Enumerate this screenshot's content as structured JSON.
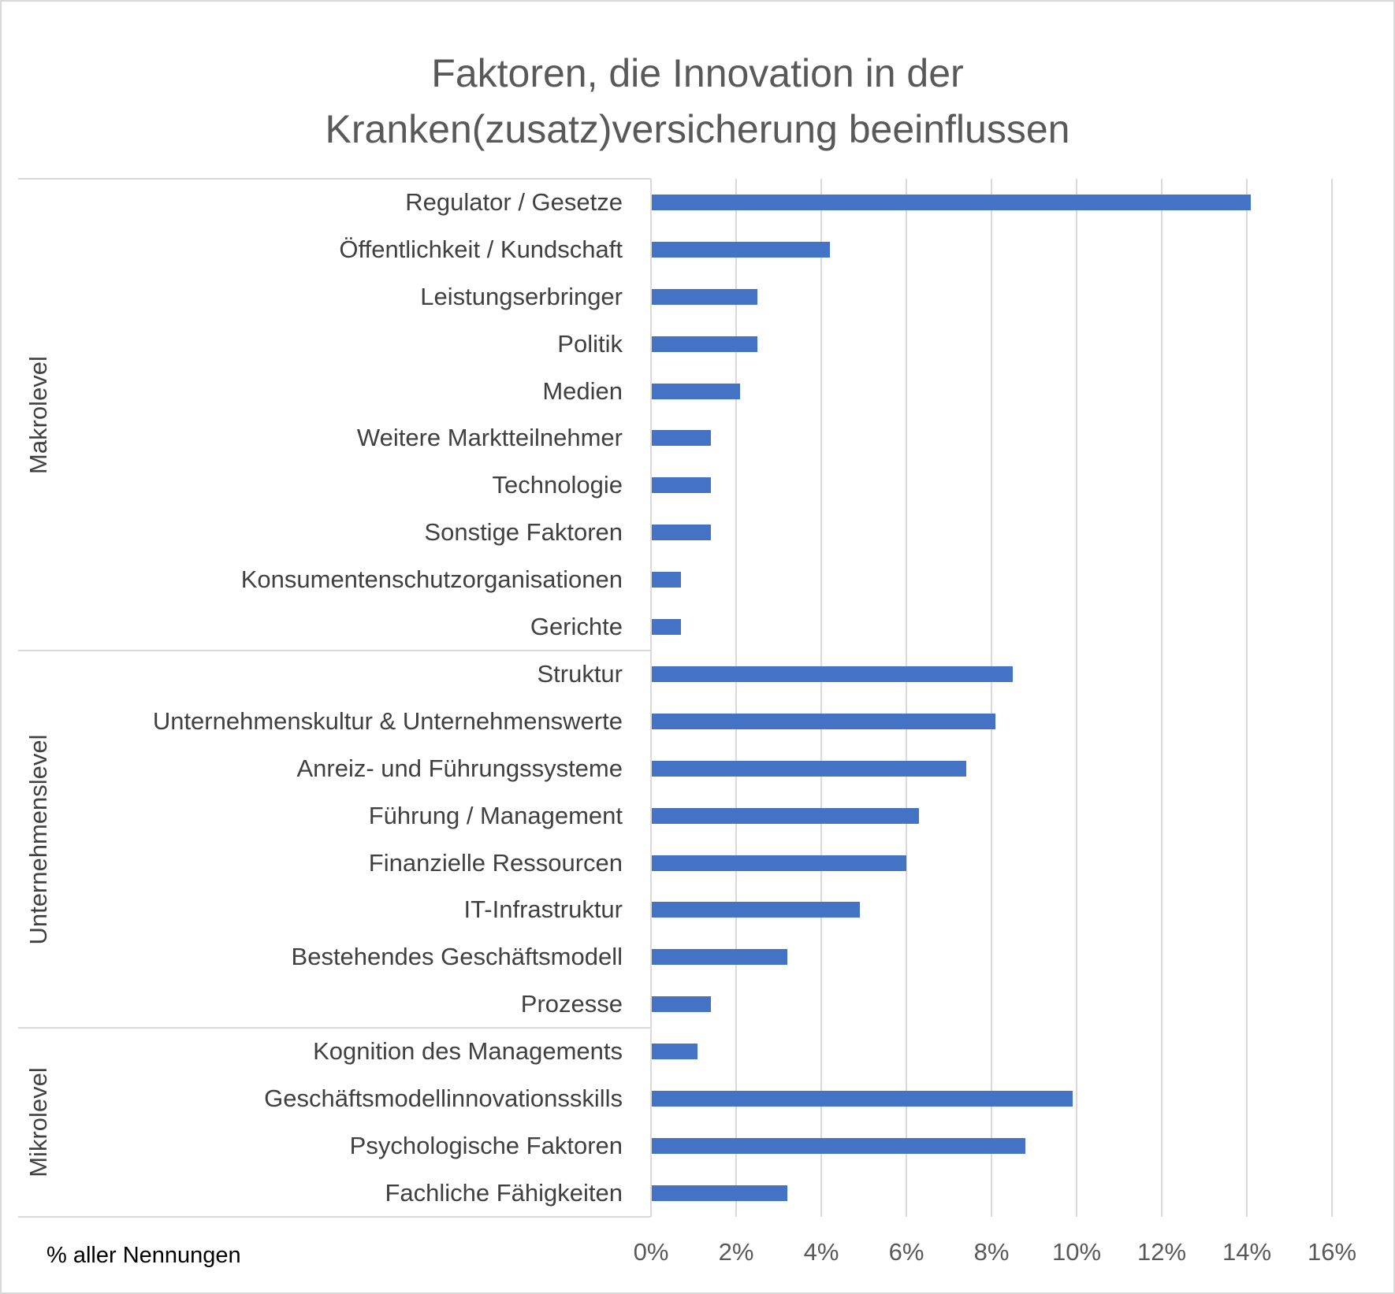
{
  "chart_data": {
    "type": "bar",
    "orientation": "horizontal",
    "title": "Faktoren, die Innovation in der Kranken(zusatz)versicherung beeinflussen",
    "title_lines": [
      "Faktoren, die Innovation in der",
      "Kranken(zusatz)versicherung beeinflussen"
    ],
    "xlabel": "% aller Nennungen",
    "ylabel": "",
    "xlim": [
      0,
      16
    ],
    "x_ticks": [
      "0%",
      "2%",
      "4%",
      "6%",
      "8%",
      "10%",
      "12%",
      "14%",
      "16%"
    ],
    "grid": "vertical",
    "bar_color": "#4472C4",
    "groups": [
      {
        "name": "Makrolevel",
        "categories": [
          {
            "label": "Regulator / Gesetze",
            "value": 14.1
          },
          {
            "label": "Öffentlichkeit / Kundschaft",
            "value": 4.2
          },
          {
            "label": "Leistungserbringer",
            "value": 2.5
          },
          {
            "label": "Politik",
            "value": 2.5
          },
          {
            "label": "Medien",
            "value": 2.1
          },
          {
            "label": "Weitere Marktteilnehmer",
            "value": 1.4
          },
          {
            "label": "Technologie",
            "value": 1.4
          },
          {
            "label": "Sonstige Faktoren",
            "value": 1.4
          },
          {
            "label": "Konsumentenschutzorganisationen",
            "value": 0.7
          },
          {
            "label": "Gerichte",
            "value": 0.7
          }
        ]
      },
      {
        "name": "Unternehmenslevel",
        "categories": [
          {
            "label": "Struktur",
            "value": 8.5
          },
          {
            "label": "Unternehmenskultur & Unternehmenswerte",
            "value": 8.1
          },
          {
            "label": "Anreiz- und Führungssysteme",
            "value": 7.4
          },
          {
            "label": "Führung / Management",
            "value": 6.3
          },
          {
            "label": "Finanzielle Ressourcen",
            "value": 6.0
          },
          {
            "label": "IT-Infrastruktur",
            "value": 4.9
          },
          {
            "label": "Bestehendes Geschäftsmodell",
            "value": 3.2
          },
          {
            "label": "Prozesse",
            "value": 1.4
          }
        ]
      },
      {
        "name": "Mikrolevel",
        "categories": [
          {
            "label": "Kognition des Managements",
            "value": 1.1
          },
          {
            "label": "Geschäftsmodellinnovationsskills",
            "value": 9.9
          },
          {
            "label": "Psychologische Faktoren",
            "value": 8.8
          },
          {
            "label": "Fachliche Fähigkeiten",
            "value": 3.2
          }
        ]
      }
    ],
    "categories": [
      "Regulator / Gesetze",
      "Öffentlichkeit / Kundschaft",
      "Leistungserbringer",
      "Politik",
      "Medien",
      "Weitere Marktteilnehmer",
      "Technologie",
      "Sonstige Faktoren",
      "Konsumentenschutzorganisationen",
      "Gerichte",
      "Struktur",
      "Unternehmenskultur & Unternehmenswerte",
      "Anreiz- und Führungssysteme",
      "Führung / Management",
      "Finanzielle Ressourcen",
      "IT-Infrastruktur",
      "Bestehendes Geschäftsmodell",
      "Prozesse",
      "Kognition des Managements",
      "Geschäftsmodellinnovationsskills",
      "Psychologische Faktoren",
      "Fachliche Fähigkeiten"
    ],
    "values": [
      14.1,
      4.2,
      2.5,
      2.5,
      2.1,
      1.4,
      1.4,
      1.4,
      0.7,
      0.7,
      8.5,
      8.1,
      7.4,
      6.3,
      6.0,
      4.9,
      3.2,
      1.4,
      1.1,
      9.9,
      8.8,
      3.2
    ]
  }
}
